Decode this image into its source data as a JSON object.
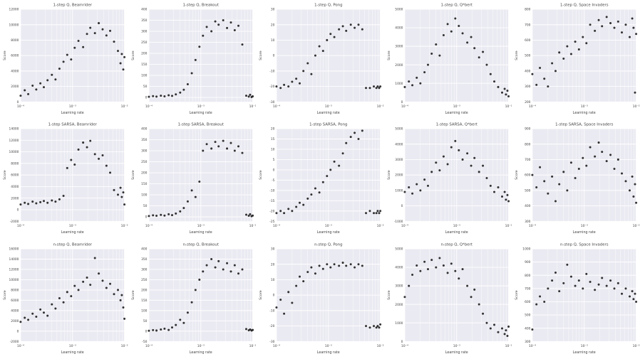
{
  "figure": {
    "colors": {
      "plot_bg": "#eaeaf2",
      "grid": "#ffffff",
      "point": "#111111",
      "text": "#444444",
      "title_text": "#2e2e2e"
    },
    "xtick_labels": [
      "10⁻⁴",
      "10⁻³",
      "10⁻²"
    ],
    "xticks": [
      0.0001,
      0.001,
      0.01
    ]
  },
  "learning_rates": [
    0.0001,
    0.00012,
    0.00014,
    0.00017,
    0.0002,
    0.00024,
    0.00028,
    0.00033,
    0.0004,
    0.00047,
    0.00056,
    0.00067,
    0.00079,
    0.00094,
    0.0011,
    0.0013,
    0.0016,
    0.0019,
    0.0022,
    0.0027,
    0.0032,
    0.0038,
    0.0045,
    0.0053,
    0.0063,
    0.0075,
    0.0084,
    0.0089,
    0.0095,
    0.01
  ],
  "chart_data": [
    {
      "type": "scatter",
      "title": "1-step Q, Beamrider",
      "xlabel": "Learning rate",
      "ylabel": "Score",
      "xscale": "log",
      "xlim": [
        0.0001,
        0.01
      ],
      "ylim": [
        0,
        12000
      ],
      "yticks": [
        0,
        2000,
        4000,
        6000,
        8000,
        10000,
        12000
      ],
      "values": [
        800,
        1500,
        1000,
        2100,
        1600,
        2400,
        1900,
        2800,
        3500,
        2900,
        4300,
        5200,
        6100,
        5500,
        7000,
        7900,
        7100,
        8800,
        9600,
        8900,
        10200,
        9400,
        8600,
        9200,
        7800,
        6600,
        5000,
        6200,
        4200,
        5800
      ]
    },
    {
      "type": "scatter",
      "title": "1-step Q, Breakout",
      "xlabel": "Learning rate",
      "ylabel": "Score",
      "xscale": "log",
      "xlim": [
        0.0001,
        0.01
      ],
      "ylim": [
        -20,
        400
      ],
      "yticks": [
        0,
        50,
        100,
        150,
        200,
        250,
        300,
        350,
        400
      ],
      "values": [
        3,
        6,
        4,
        8,
        5,
        10,
        7,
        14,
        22,
        35,
        60,
        110,
        170,
        230,
        280,
        320,
        300,
        345,
        330,
        350,
        315,
        340,
        305,
        325,
        240,
        8,
        4,
        12,
        2,
        5
      ]
    },
    {
      "type": "scatter",
      "title": "1-step Q, Pong",
      "xlabel": "Learning rate",
      "ylabel": "Score",
      "xscale": "log",
      "xlim": [
        0.0001,
        0.01
      ],
      "ylim": [
        -30,
        30
      ],
      "yticks": [
        -30,
        -20,
        -10,
        0,
        10,
        20,
        30
      ],
      "values": [
        -20,
        -21,
        -19,
        -20,
        -17,
        -15,
        -18,
        -10,
        -5,
        -12,
        0,
        6,
        3,
        10,
        14,
        12,
        17,
        19,
        16,
        20,
        18,
        20,
        17,
        -21,
        -21,
        -20,
        -21,
        -20,
        -21,
        -20
      ]
    },
    {
      "type": "scatter",
      "title": "1-step Q, Q*bert",
      "xlabel": "Learning rate",
      "ylabel": "Score",
      "xscale": "log",
      "xlim": [
        0.0001,
        0.01
      ],
      "ylim": [
        0,
        5000
      ],
      "yticks": [
        0,
        1000,
        2000,
        3000,
        4000,
        5000
      ],
      "values": [
        800,
        1100,
        900,
        1300,
        1000,
        1600,
        2000,
        2600,
        3100,
        2500,
        3600,
        4200,
        3800,
        4500,
        4100,
        3700,
        3200,
        3500,
        2900,
        2400,
        2700,
        2000,
        1500,
        1100,
        800,
        500,
        700,
        400,
        600,
        300
      ]
    },
    {
      "type": "scatter",
      "title": "1-step Q, Space Invaders",
      "xlabel": "Learning rate",
      "ylabel": "Score",
      "xscale": "log",
      "xlim": [
        0.0001,
        0.01
      ],
      "ylim": [
        200,
        800
      ],
      "yticks": [
        200,
        300,
        400,
        500,
        600,
        700,
        800
      ],
      "values": [
        380,
        310,
        420,
        350,
        300,
        450,
        400,
        520,
        480,
        560,
        510,
        590,
        540,
        620,
        580,
        700,
        660,
        730,
        690,
        750,
        710,
        680,
        720,
        650,
        700,
        620,
        740,
        680,
        260,
        640
      ]
    },
    {
      "type": "scatter",
      "title": "1-step SARSA, Beamrider",
      "xlabel": "Learning rate",
      "ylabel": "Score",
      "xscale": "log",
      "xlim": [
        0.0001,
        0.01
      ],
      "ylim": [
        -2000,
        14000
      ],
      "yticks": [
        -2000,
        0,
        2000,
        4000,
        6000,
        8000,
        10000,
        12000,
        14000
      ],
      "values": [
        900,
        1200,
        1000,
        1400,
        1100,
        1300,
        1500,
        1200,
        1600,
        1400,
        1800,
        2400,
        7200,
        8600,
        7800,
        10400,
        11600,
        10800,
        11900,
        9600,
        8800,
        9400,
        7600,
        6400,
        3400,
        2600,
        3800,
        2200,
        3000,
        900
      ]
    },
    {
      "type": "scatter",
      "title": "1-step SARSA, Breakout",
      "xlabel": "Learning rate",
      "ylabel": "Score",
      "xscale": "log",
      "xlim": [
        0.0001,
        0.01
      ],
      "ylim": [
        -20,
        400
      ],
      "yticks": [
        0,
        50,
        100,
        150,
        200,
        250,
        300,
        350,
        400
      ],
      "values": [
        4,
        7,
        5,
        9,
        6,
        12,
        8,
        15,
        25,
        40,
        70,
        120,
        90,
        160,
        300,
        330,
        310,
        340,
        320,
        345,
        310,
        335,
        300,
        320,
        290,
        10,
        5,
        12,
        3,
        6
      ]
    },
    {
      "type": "scatter",
      "title": "1-step SARSA, Pong",
      "xlabel": "Learning rate",
      "ylabel": "Score",
      "xscale": "log",
      "xlim": [
        0.0001,
        0.01
      ],
      "ylim": [
        -25,
        20
      ],
      "yticks": [
        -25,
        -20,
        -15,
        -10,
        -5,
        0,
        5,
        10,
        15,
        20
      ],
      "values": [
        -21,
        -20,
        -21,
        -19,
        -20,
        -18,
        -16,
        -17,
        -14,
        -12,
        -9,
        -11,
        -6,
        -3,
        0,
        4,
        2,
        8,
        13,
        16,
        18,
        15,
        19,
        -21,
        -20,
        -21,
        -21,
        -20,
        -21,
        -20
      ]
    },
    {
      "type": "scatter",
      "title": "1-step SARSA, Q*bert",
      "xlabel": "Learning rate",
      "ylabel": "Score",
      "xscale": "log",
      "xlim": [
        0.0001,
        0.01
      ],
      "ylim": [
        -1000,
        5000
      ],
      "yticks": [
        -1000,
        0,
        1000,
        2000,
        3000,
        4000,
        5000
      ],
      "values": [
        900,
        1200,
        800,
        1400,
        1000,
        1700,
        1300,
        2200,
        2800,
        2300,
        3200,
        2700,
        3800,
        4200,
        3600,
        3000,
        3400,
        2600,
        3100,
        2200,
        2600,
        1800,
        1300,
        900,
        1200,
        600,
        900,
        400,
        700,
        300
      ]
    },
    {
      "type": "scatter",
      "title": "1-step SARSA, Space Invaders",
      "xlabel": "Learning rate",
      "ylabel": "Score",
      "xscale": "log",
      "xlim": [
        0.0001,
        0.01
      ],
      "ylim": [
        300,
        900
      ],
      "yticks": [
        300,
        400,
        500,
        600,
        700,
        800,
        900
      ],
      "values": [
        600,
        520,
        650,
        560,
        480,
        590,
        430,
        540,
        620,
        500,
        680,
        580,
        640,
        710,
        660,
        780,
        720,
        810,
        750,
        690,
        730,
        640,
        700,
        610,
        560,
        500,
        590,
        460,
        540,
        420
      ]
    },
    {
      "type": "scatter",
      "title": "n-step Q, Beamrider",
      "xlabel": "Learning rate",
      "ylabel": "Score",
      "xscale": "log",
      "xlim": [
        0.0001,
        0.01
      ],
      "ylim": [
        -2000,
        16000
      ],
      "yticks": [
        -2000,
        0,
        2000,
        4000,
        6000,
        8000,
        10000,
        12000,
        14000,
        16000
      ],
      "values": [
        1800,
        2600,
        2200,
        3400,
        2800,
        4200,
        3600,
        3000,
        5200,
        4400,
        6400,
        5600,
        7600,
        6800,
        8800,
        8000,
        9600,
        10400,
        9000,
        14200,
        11200,
        9800,
        8400,
        9200,
        7200,
        8000,
        6000,
        7000,
        4600,
        2400
      ]
    },
    {
      "type": "scatter",
      "title": "n-step Q, Breakout",
      "xlabel": "Learning rate",
      "ylabel": "Score",
      "xscale": "log",
      "xlim": [
        0.0001,
        0.01
      ],
      "ylim": [
        -50,
        400
      ],
      "yticks": [
        -50,
        0,
        50,
        100,
        150,
        200,
        250,
        300,
        350,
        400
      ],
      "values": [
        2,
        5,
        3,
        8,
        12,
        6,
        18,
        30,
        55,
        40,
        90,
        140,
        200,
        250,
        290,
        320,
        350,
        310,
        340,
        300,
        330,
        290,
        320,
        280,
        300,
        10,
        4,
        8,
        3,
        6
      ]
    },
    {
      "type": "scatter",
      "title": "n-step Q, Pong",
      "xlabel": "Learning rate",
      "ylabel": "Score",
      "xscale": "log",
      "xlim": [
        0.0001,
        0.01
      ],
      "ylim": [
        -30,
        30
      ],
      "yticks": [
        -30,
        -20,
        -10,
        0,
        10,
        20,
        30
      ],
      "values": [
        -8,
        -3,
        -12,
        2,
        -5,
        6,
        12,
        9,
        15,
        18,
        14,
        19,
        17,
        20,
        18,
        20,
        19,
        21,
        19,
        20,
        18,
        20,
        19,
        -20,
        -21,
        -20,
        -21,
        -20,
        -21,
        -19
      ]
    },
    {
      "type": "scatter",
      "title": "n-step Q, Q*bert",
      "xlabel": "Learning rate",
      "ylabel": "Score",
      "xscale": "log",
      "xlim": [
        0.0001,
        0.01
      ],
      "ylim": [
        0,
        5000
      ],
      "yticks": [
        0,
        1000,
        2000,
        3000,
        4000,
        5000
      ],
      "values": [
        2400,
        3000,
        3600,
        4100,
        3800,
        4300,
        3900,
        4400,
        4000,
        4500,
        4100,
        3700,
        4200,
        3800,
        3400,
        3900,
        3000,
        2400,
        2800,
        2000,
        1500,
        1000,
        700,
        900,
        500,
        700,
        400,
        600,
        300,
        800
      ]
    },
    {
      "type": "scatter",
      "title": "n-step Q, Space Invaders",
      "xlabel": "Learning rate",
      "ylabel": "Score",
      "xscale": "log",
      "xlim": [
        0.0001,
        0.01
      ],
      "ylim": [
        300,
        1000
      ],
      "yticks": [
        300,
        400,
        500,
        600,
        700,
        800,
        900,
        1000
      ],
      "values": [
        390,
        580,
        640,
        600,
        700,
        760,
        820,
        680,
        740,
        880,
        790,
        720,
        760,
        700,
        810,
        750,
        690,
        730,
        780,
        720,
        760,
        700,
        740,
        660,
        700,
        640,
        680,
        620,
        660,
        600
      ]
    }
  ]
}
